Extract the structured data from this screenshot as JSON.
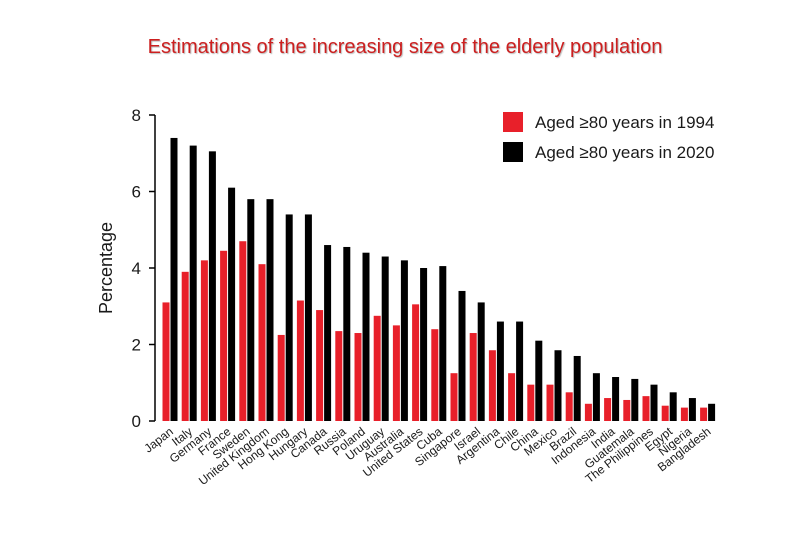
{
  "slide": {
    "title": "Estimations of the increasing size of the elderly population"
  },
  "colors": {
    "series_1994": "#e8202a",
    "series_2020": "#000000",
    "title": "#cc1f1f"
  },
  "chart_data": {
    "type": "bar",
    "title": "Estimations of the increasing size of the elderly population",
    "xlabel": "",
    "ylabel": "Percentage",
    "ylim": [
      0,
      8
    ],
    "yticks": [
      0,
      2,
      4,
      6,
      8
    ],
    "grid": false,
    "legend_position": "top-right",
    "categories": [
      "Japan",
      "Italy",
      "Germany",
      "France",
      "Sweden",
      "United Kingdom",
      "Hong Kong",
      "Hungary",
      "Canada",
      "Russia",
      "Poland",
      "Uruguay",
      "Australia",
      "United States",
      "Cuba",
      "Singapore",
      "Israel",
      "Argentina",
      "Chile",
      "China",
      "Mexico",
      "Brazil",
      "Indonesia",
      "India",
      "Guatemala",
      "The Philippines",
      "Egypt",
      "Nigeria",
      "Bangladesh"
    ],
    "series": [
      {
        "name": "Aged ≥80 years in 1994",
        "color": "#e8202a",
        "values": [
          3.1,
          3.9,
          4.2,
          4.45,
          4.7,
          4.1,
          2.25,
          3.15,
          2.9,
          2.35,
          2.3,
          2.75,
          2.5,
          3.05,
          2.4,
          1.25,
          2.3,
          1.85,
          1.25,
          0.95,
          0.95,
          0.75,
          0.45,
          0.6,
          0.55,
          0.65,
          0.4,
          0.35,
          0.35
        ]
      },
      {
        "name": "Aged ≥80 years in 2020",
        "color": "#000000",
        "values": [
          7.4,
          7.2,
          7.05,
          6.1,
          5.8,
          5.8,
          5.4,
          5.4,
          4.6,
          4.55,
          4.4,
          4.3,
          4.2,
          4.0,
          4.05,
          3.4,
          3.1,
          2.6,
          2.6,
          2.1,
          1.85,
          1.7,
          1.25,
          1.15,
          1.1,
          0.95,
          0.75,
          0.6,
          0.45
        ]
      }
    ]
  }
}
